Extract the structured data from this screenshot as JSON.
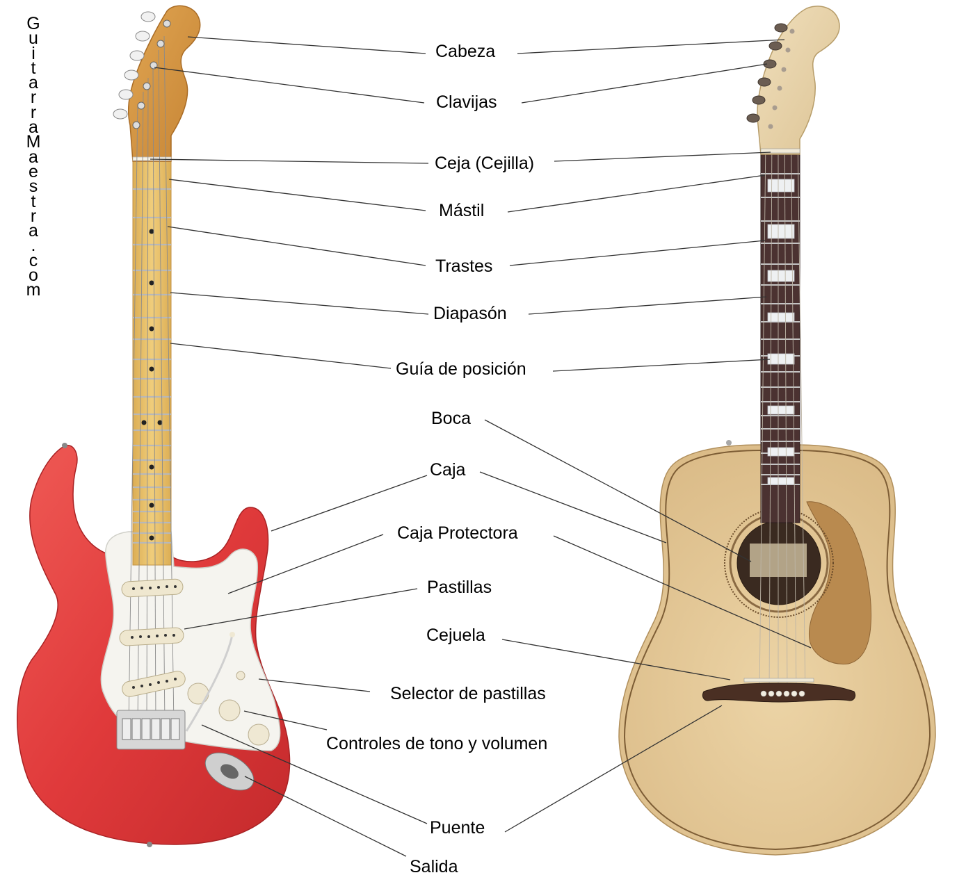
{
  "watermark": "GuitarraMaestra.com",
  "colors": {
    "electric_body": "#e23c3c",
    "pickguard": "#f4f4f0",
    "maple_neck": "#e9c36d",
    "acoustic_top": "#e3c89a",
    "rosewood": "#4b3231",
    "acoustic_pickguard": "#b98a4f",
    "leader_line": "#333333"
  },
  "labels": [
    {
      "id": "cabeza",
      "text": "Cabeza"
    },
    {
      "id": "clavijas",
      "text": "Clavijas"
    },
    {
      "id": "ceja",
      "text": "Ceja (Cejilla)"
    },
    {
      "id": "mastil",
      "text": "Mástil"
    },
    {
      "id": "trastes",
      "text": "Trastes"
    },
    {
      "id": "diapason",
      "text": "Diapasón"
    },
    {
      "id": "guia",
      "text": "Guía de posición"
    },
    {
      "id": "boca",
      "text": "Boca"
    },
    {
      "id": "caja",
      "text": "Caja"
    },
    {
      "id": "caja-protectora",
      "text": "Caja Protectora"
    },
    {
      "id": "pastillas",
      "text": "Pastillas"
    },
    {
      "id": "cejuela",
      "text": "Cejuela"
    },
    {
      "id": "selector",
      "text": "Selector de pastillas"
    },
    {
      "id": "controles",
      "text": "Controles de tono y volumen"
    },
    {
      "id": "puente",
      "text": "Puente"
    },
    {
      "id": "salida",
      "text": "Salida"
    }
  ]
}
